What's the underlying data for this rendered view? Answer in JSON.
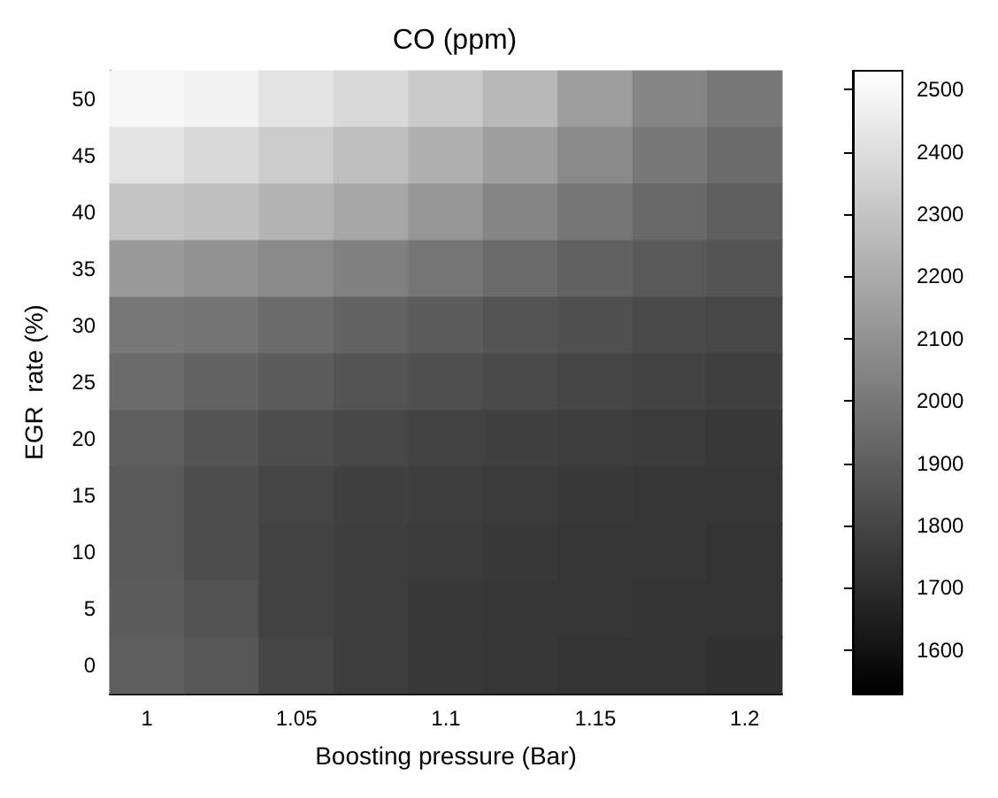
{
  "chart_data": {
    "type": "heatmap",
    "title": "CO (ppm)",
    "xlabel": "Boosting pressure (Bar)",
    "ylabel": "EGR  rate (%)",
    "categories": [
      "1",
      null,
      "1.05",
      null,
      "1.1",
      null,
      "1.15",
      null,
      "1.2"
    ],
    "y_categories": [
      "50",
      "45",
      "40",
      "35",
      "30",
      "25",
      "20",
      "15",
      "10",
      "5",
      "0"
    ],
    "cells": [
      [
        2500,
        2480,
        2420,
        2380,
        2320,
        2250,
        2150,
        2050,
        2000
      ],
      [
        2420,
        2380,
        2330,
        2280,
        2220,
        2150,
        2070,
        2000,
        1950
      ],
      [
        2300,
        2280,
        2230,
        2180,
        2120,
        2050,
        1990,
        1940,
        1900
      ],
      [
        2130,
        2100,
        2070,
        2030,
        1990,
        1950,
        1910,
        1880,
        1860
      ],
      [
        2000,
        1980,
        1950,
        1920,
        1890,
        1860,
        1840,
        1820,
        1810
      ],
      [
        1950,
        1920,
        1890,
        1860,
        1840,
        1820,
        1800,
        1790,
        1780
      ],
      [
        1900,
        1860,
        1830,
        1810,
        1790,
        1780,
        1770,
        1760,
        1750
      ],
      [
        1880,
        1830,
        1800,
        1780,
        1770,
        1760,
        1750,
        1740,
        1740
      ],
      [
        1880,
        1830,
        1790,
        1770,
        1760,
        1750,
        1740,
        1740,
        1730
      ],
      [
        1890,
        1850,
        1790,
        1770,
        1750,
        1740,
        1740,
        1730,
        1730
      ],
      [
        1900,
        1870,
        1800,
        1770,
        1750,
        1740,
        1730,
        1730,
        1720
      ]
    ],
    "clim": [
      1530,
      2530
    ],
    "cticks": [
      1600,
      1700,
      1800,
      1900,
      2000,
      2100,
      2200,
      2300,
      2400,
      2500
    ]
  }
}
